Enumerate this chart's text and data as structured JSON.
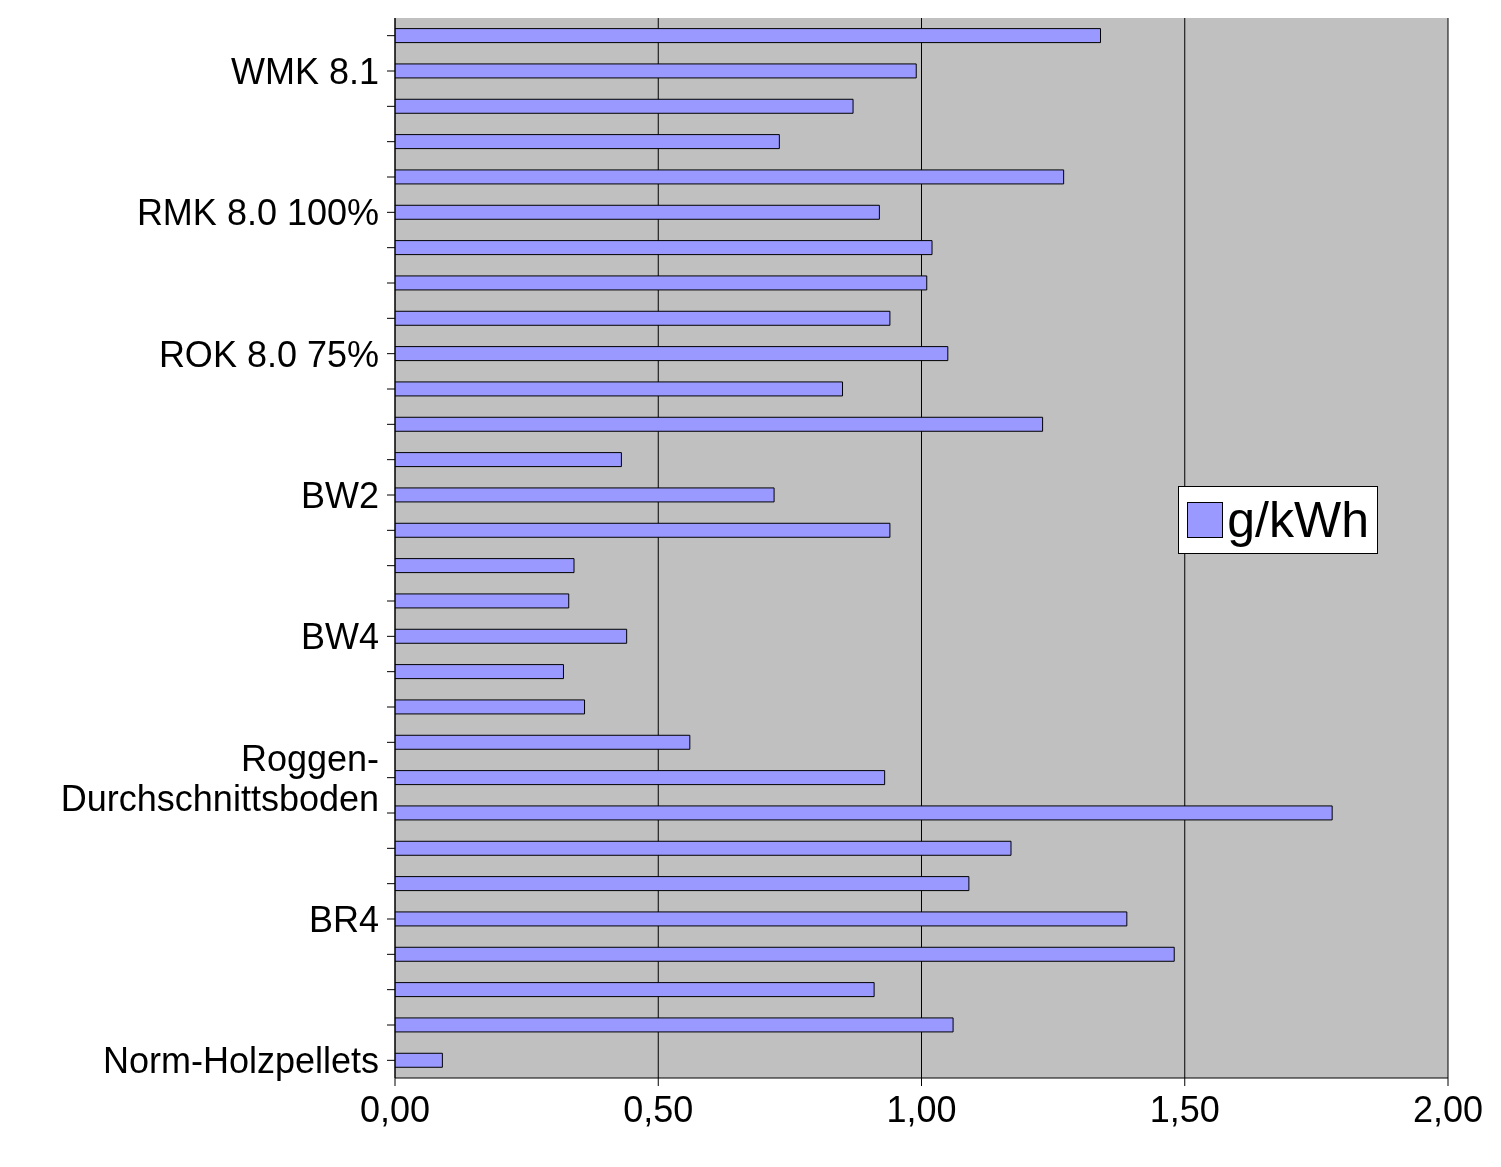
{
  "chart_data": {
    "type": "bar",
    "orientation": "horizontal",
    "categories": [
      null,
      "WMK 8.1",
      null,
      null,
      null,
      "RMK 8.0 100%",
      null,
      null,
      null,
      "ROK 8.0 75%",
      null,
      null,
      null,
      "BW2",
      null,
      null,
      null,
      "BW4",
      null,
      null,
      null,
      "Roggen-\nDurchschnittsboden",
      null,
      null,
      null,
      "BR4",
      null,
      null,
      null,
      "Norm-Holzpellets"
    ],
    "series": [
      {
        "name": "g/kWh",
        "color": "#9999ff",
        "values": [
          1.34,
          0.99,
          0.87,
          0.73,
          1.27,
          0.92,
          1.02,
          1.01,
          0.94,
          1.05,
          0.85,
          1.23,
          0.43,
          0.72,
          0.94,
          0.34,
          0.33,
          0.44,
          0.32,
          0.36,
          0.56,
          0.93,
          1.78,
          1.17,
          1.09,
          1.39,
          1.48,
          0.91,
          1.06,
          0.09
        ]
      }
    ],
    "xlim": [
      0,
      2
    ],
    "xticks": [
      {
        "value": 0,
        "label": "0,00"
      },
      {
        "value": 0.5,
        "label": "0,50"
      },
      {
        "value": 1,
        "label": "1,00"
      },
      {
        "value": 1.5,
        "label": "1,50"
      },
      {
        "value": 2,
        "label": "2,00"
      }
    ],
    "grid": "x",
    "legend": "right"
  }
}
